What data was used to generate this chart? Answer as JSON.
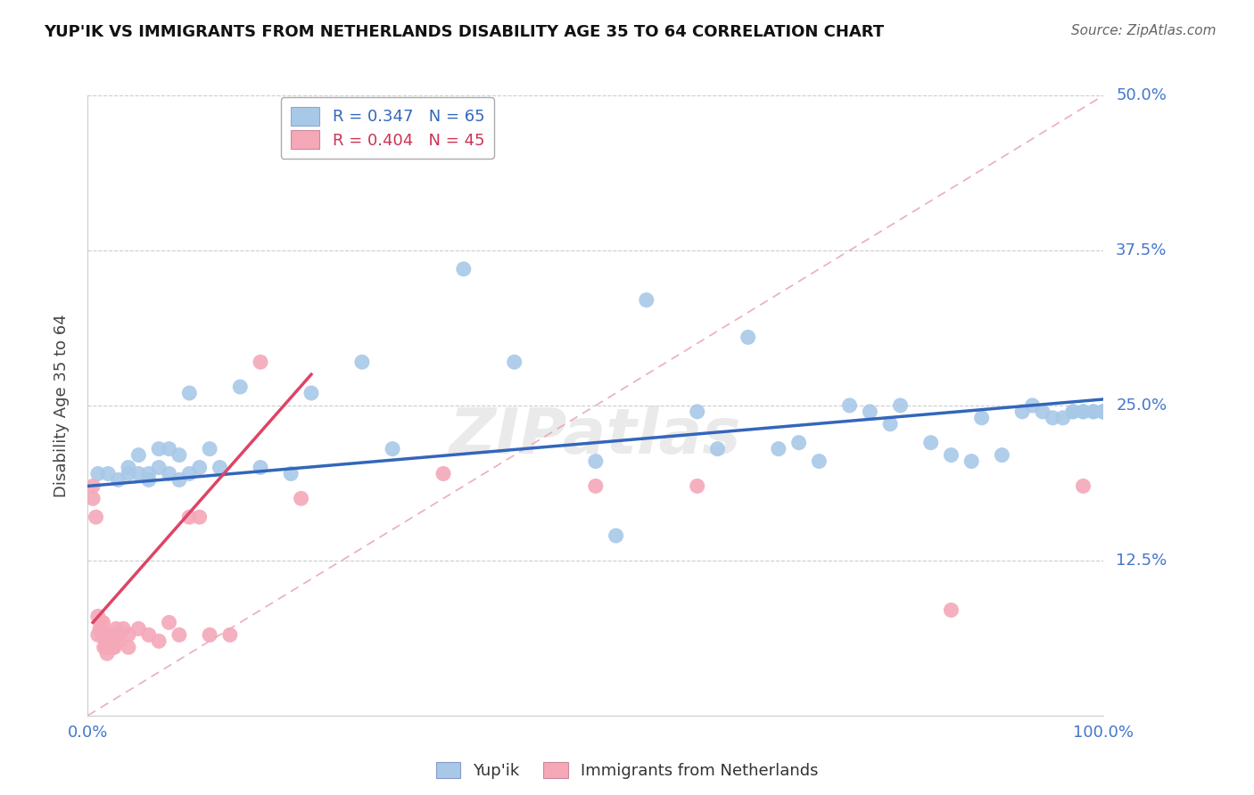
{
  "title": "YUP'IK VS IMMIGRANTS FROM NETHERLANDS DISABILITY AGE 35 TO 64 CORRELATION CHART",
  "source": "Source: ZipAtlas.com",
  "ylabel": "Disability Age 35 to 64",
  "xlim": [
    0.0,
    1.0
  ],
  "ylim": [
    0.0,
    0.5
  ],
  "yticks": [
    0.0,
    0.125,
    0.25,
    0.375,
    0.5
  ],
  "ytick_labels": [
    "",
    "12.5%",
    "25.0%",
    "37.5%",
    "50.0%"
  ],
  "xticks": [
    0.0,
    0.25,
    0.5,
    0.75,
    1.0
  ],
  "xtick_labels": [
    "0.0%",
    "",
    "",
    "",
    "100.0%"
  ],
  "blue_R": 0.347,
  "blue_N": 65,
  "pink_R": 0.404,
  "pink_N": 45,
  "blue_color": "#a8c8e8",
  "pink_color": "#f4a8b8",
  "blue_line_color": "#3366bb",
  "pink_line_color": "#dd4466",
  "ref_line_color": "#e8a0b0",
  "blue_x": [
    0.01,
    0.02,
    0.03,
    0.04,
    0.04,
    0.05,
    0.05,
    0.06,
    0.06,
    0.07,
    0.07,
    0.08,
    0.08,
    0.09,
    0.09,
    0.1,
    0.1,
    0.11,
    0.12,
    0.13,
    0.15,
    0.17,
    0.2,
    0.22,
    0.27,
    0.3,
    0.37,
    0.42,
    0.5,
    0.52,
    0.55,
    0.6,
    0.62,
    0.65,
    0.68,
    0.7,
    0.72,
    0.75,
    0.77,
    0.79,
    0.8,
    0.83,
    0.85,
    0.87,
    0.88,
    0.9,
    0.92,
    0.93,
    0.94,
    0.95,
    0.96,
    0.97,
    0.97,
    0.98,
    0.98,
    0.99,
    0.99,
    1.0,
    1.0,
    1.0,
    1.0,
    1.0,
    1.0,
    1.0,
    1.0
  ],
  "blue_y": [
    0.195,
    0.195,
    0.19,
    0.195,
    0.2,
    0.195,
    0.21,
    0.19,
    0.195,
    0.2,
    0.215,
    0.195,
    0.215,
    0.19,
    0.21,
    0.195,
    0.26,
    0.2,
    0.215,
    0.2,
    0.265,
    0.2,
    0.195,
    0.26,
    0.285,
    0.215,
    0.36,
    0.285,
    0.205,
    0.145,
    0.335,
    0.245,
    0.215,
    0.305,
    0.215,
    0.22,
    0.205,
    0.25,
    0.245,
    0.235,
    0.25,
    0.22,
    0.21,
    0.205,
    0.24,
    0.21,
    0.245,
    0.25,
    0.245,
    0.24,
    0.24,
    0.245,
    0.245,
    0.245,
    0.245,
    0.245,
    0.245,
    0.245,
    0.245,
    0.245,
    0.245,
    0.245,
    0.245,
    0.245,
    0.245
  ],
  "pink_x": [
    0.005,
    0.005,
    0.008,
    0.01,
    0.01,
    0.012,
    0.013,
    0.015,
    0.015,
    0.016,
    0.017,
    0.018,
    0.018,
    0.019,
    0.02,
    0.02,
    0.022,
    0.023,
    0.024,
    0.025,
    0.025,
    0.026,
    0.027,
    0.028,
    0.03,
    0.03,
    0.035,
    0.04,
    0.04,
    0.05,
    0.06,
    0.07,
    0.08,
    0.09,
    0.1,
    0.11,
    0.12,
    0.14,
    0.17,
    0.21,
    0.35,
    0.5,
    0.6,
    0.85,
    0.98
  ],
  "pink_y": [
    0.185,
    0.175,
    0.16,
    0.08,
    0.065,
    0.07,
    0.075,
    0.065,
    0.075,
    0.055,
    0.065,
    0.055,
    0.06,
    0.05,
    0.055,
    0.065,
    0.06,
    0.055,
    0.06,
    0.055,
    0.065,
    0.055,
    0.065,
    0.07,
    0.06,
    0.065,
    0.07,
    0.055,
    0.065,
    0.07,
    0.065,
    0.06,
    0.075,
    0.065,
    0.16,
    0.16,
    0.065,
    0.065,
    0.285,
    0.175,
    0.195,
    0.185,
    0.185,
    0.085,
    0.185
  ],
  "pink_line_x_start": 0.005,
  "pink_line_x_end": 0.22,
  "blue_line_x_start": 0.0,
  "blue_line_x_end": 1.0,
  "ref_line_x_start": 0.0,
  "ref_line_x_end": 1.0
}
